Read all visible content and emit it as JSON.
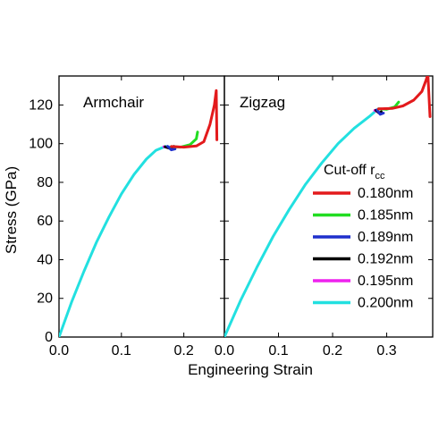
{
  "chart_data": {
    "type": "line",
    "ylabel": "Stress (GPa)",
    "xlabel": "Engineering Strain",
    "ylim": [
      0,
      135
    ],
    "yticks": [
      0,
      20,
      40,
      60,
      80,
      100,
      120
    ],
    "grid": false,
    "legend": {
      "title": "Cut-off r",
      "title_subscript": "cc",
      "placement": "right-middle of Zigzag panel",
      "entries": [
        {
          "label": "0.180nm",
          "color": "#e31a1c"
        },
        {
          "label": "0.185nm",
          "color": "#22dd22"
        },
        {
          "label": "0.189nm",
          "color": "#1f2fcc"
        },
        {
          "label": "0.192nm",
          "color": "#000000"
        },
        {
          "label": "0.195nm",
          "color": "#ee22ee"
        },
        {
          "label": "0.200nm",
          "color": "#22e0e0"
        }
      ]
    },
    "panels": [
      {
        "title": "Armchair",
        "xlim": [
          0,
          0.265
        ],
        "xticks": [
          0.0,
          0.1,
          0.2
        ],
        "tick_labels": [
          "0.0",
          "0.1",
          "0.2"
        ],
        "series": [
          {
            "label": "0.200nm",
            "color": "#22e0e0",
            "points": [
              [
                0,
                0
              ],
              [
                0.02,
                18
              ],
              [
                0.04,
                34
              ],
              [
                0.06,
                49
              ],
              [
                0.08,
                62
              ],
              [
                0.1,
                74
              ],
              [
                0.12,
                84
              ],
              [
                0.14,
                92
              ],
              [
                0.155,
                96.5
              ],
              [
                0.17,
                98.5
              ],
              [
                0.18,
                98.2
              ]
            ]
          },
          {
            "label": "0.195nm",
            "color": "#ee22ee",
            "points": [
              [
                0.168,
                98.4
              ],
              [
                0.178,
                97.8
              ],
              [
                0.184,
                97.6
              ]
            ]
          },
          {
            "label": "0.192nm",
            "color": "#000000",
            "points": [
              [
                0.17,
                98.4
              ],
              [
                0.178,
                97.5
              ],
              [
                0.184,
                98.6
              ]
            ]
          },
          {
            "label": "0.189nm",
            "color": "#1f2fcc",
            "points": [
              [
                0.174,
                98.6
              ],
              [
                0.18,
                96.8
              ],
              [
                0.186,
                97.3
              ]
            ]
          },
          {
            "label": "0.185nm",
            "color": "#22dd22",
            "points": [
              [
                0.18,
                98.5
              ],
              [
                0.195,
                98.2
              ],
              [
                0.21,
                99.5
              ],
              [
                0.22,
                102.5
              ],
              [
                0.222,
                106
              ]
            ]
          },
          {
            "label": "0.180nm",
            "color": "#e31a1c",
            "points": [
              [
                0.18,
                98.5
              ],
              [
                0.2,
                98.2
              ],
              [
                0.22,
                98.8
              ],
              [
                0.232,
                101
              ],
              [
                0.242,
                110
              ],
              [
                0.249,
                120
              ],
              [
                0.252,
                127.5
              ],
              [
                0.253,
                102
              ]
            ]
          }
        ]
      },
      {
        "title": "Zigzag",
        "xlim": [
          0,
          0.385
        ],
        "xticks": [
          0.0,
          0.1,
          0.2,
          0.3
        ],
        "tick_labels": [
          "0.0",
          "0.1",
          "0.2",
          "0.3"
        ],
        "series": [
          {
            "label": "0.200nm",
            "color": "#22e0e0",
            "points": [
              [
                0,
                0
              ],
              [
                0.03,
                19
              ],
              [
                0.06,
                36
              ],
              [
                0.09,
                52
              ],
              [
                0.12,
                66
              ],
              [
                0.15,
                79
              ],
              [
                0.18,
                90
              ],
              [
                0.21,
                100
              ],
              [
                0.24,
                108
              ],
              [
                0.27,
                114.5
              ],
              [
                0.28,
                117
              ],
              [
                0.285,
                118
              ]
            ]
          },
          {
            "label": "0.195nm",
            "color": "#ee22ee",
            "points": [
              [
                0.278,
                117.2
              ],
              [
                0.285,
                116.2
              ],
              [
                0.29,
                115.6
              ]
            ]
          },
          {
            "label": "0.192nm",
            "color": "#000000",
            "points": [
              [
                0.28,
                117.3
              ],
              [
                0.286,
                115.8
              ],
              [
                0.29,
                116.5
              ]
            ]
          },
          {
            "label": "0.189nm",
            "color": "#1f2fcc",
            "points": [
              [
                0.282,
                117.5
              ],
              [
                0.288,
                115.2
              ],
              [
                0.294,
                115.8
              ]
            ]
          },
          {
            "label": "0.185nm",
            "color": "#22dd22",
            "points": [
              [
                0.285,
                118
              ],
              [
                0.3,
                117.8
              ],
              [
                0.315,
                119
              ],
              [
                0.322,
                121.5
              ]
            ]
          },
          {
            "label": "0.180nm",
            "color": "#e31a1c",
            "points": [
              [
                0.285,
                118
              ],
              [
                0.31,
                118.2
              ],
              [
                0.33,
                119.5
              ],
              [
                0.35,
                122.5
              ],
              [
                0.365,
                127
              ],
              [
                0.373,
                133
              ],
              [
                0.376,
                136
              ],
              [
                0.38,
                114
              ]
            ]
          }
        ]
      }
    ]
  }
}
